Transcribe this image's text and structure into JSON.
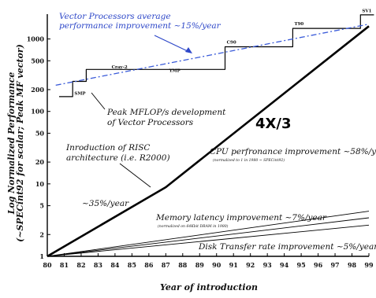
{
  "chart_data": {
    "type": "line",
    "xlabel": "Year of introduction",
    "ylabel_lines": [
      "Log Normalized Performance",
      "(~SPECint92 for scalar; Peak MF vector)"
    ],
    "x_ticks": [
      "80",
      "81",
      "82",
      "83",
      "84",
      "85",
      "86",
      "87",
      "88",
      "89",
      "90",
      "91",
      "92",
      "93",
      "94",
      "95",
      "96",
      "97",
      "98",
      "99"
    ],
    "y_ticks": [
      {
        "value": 1,
        "label": "1"
      },
      {
        "value": 2,
        "label": "2"
      },
      {
        "value": 5,
        "label": "5"
      },
      {
        "value": 10,
        "label": "10"
      },
      {
        "value": 20,
        "label": "20"
      },
      {
        "value": 50,
        "label": "50"
      },
      {
        "value": 100,
        "label": "100"
      },
      {
        "value": 200,
        "label": "200"
      },
      {
        "value": 500,
        "label": "500"
      },
      {
        "value": 1000,
        "label": "1000"
      }
    ],
    "xlim": [
      80,
      99
    ],
    "ylim": [
      1,
      2200
    ],
    "yscale": "log",
    "series": [
      {
        "key": "cpu",
        "color": "#000000",
        "points": [
          [
            80,
            1
          ],
          [
            87,
            9
          ],
          [
            99,
            1500
          ]
        ]
      },
      {
        "key": "vector_peak",
        "color": "#000000",
        "step": true,
        "points": [
          [
            80.7,
            160
          ],
          [
            81.5,
            160
          ],
          [
            81.5,
            260
          ],
          [
            82.3,
            260
          ],
          [
            82.3,
            380
          ],
          [
            90.5,
            380
          ],
          [
            90.5,
            780
          ],
          [
            94.5,
            780
          ],
          [
            94.5,
            1400
          ],
          [
            98.5,
            1400
          ],
          [
            98.5,
            2150
          ],
          [
            99.3,
            2150
          ]
        ]
      },
      {
        "key": "vector_trend",
        "color": "#3a5bd9",
        "dashed": true,
        "points": [
          [
            80.5,
            230
          ],
          [
            99,
            1600
          ]
        ]
      },
      {
        "key": "memory_a",
        "color": "#000000",
        "thin": true,
        "points": [
          [
            80,
            1
          ],
          [
            99,
            4.2
          ]
        ]
      },
      {
        "key": "memory_b",
        "color": "#000000",
        "thin": true,
        "points": [
          [
            80,
            1
          ],
          [
            99,
            3.4
          ]
        ]
      },
      {
        "key": "disk",
        "color": "#000000",
        "thin": true,
        "points": [
          [
            80,
            1
          ],
          [
            99,
            2.7
          ]
        ]
      }
    ],
    "machine_labels": [
      {
        "text": "SMP",
        "x": 81.6,
        "y": 170
      },
      {
        "text": "Cray-2",
        "x": 83.8,
        "y": 390
      },
      {
        "text": "YMP",
        "x": 87.2,
        "y": 350
      },
      {
        "text": "C90",
        "x": 90.6,
        "y": 860
      },
      {
        "text": "T90",
        "x": 94.6,
        "y": 1550
      },
      {
        "text": "SV1",
        "x": 98.6,
        "y": 2350
      }
    ],
    "annotations": [
      {
        "key": "vec_avg_1",
        "text": "Vector Processors average",
        "color": "blue"
      },
      {
        "key": "vec_avg_2",
        "text": "performance improvement ~15%/year",
        "color": "blue"
      },
      {
        "key": "peak_1",
        "text": "Peak MFLOP/s development"
      },
      {
        "key": "peak_2",
        "text": "of Vector Processors"
      },
      {
        "key": "big",
        "text": "4X/3"
      },
      {
        "key": "risc_1",
        "text": "Inroduction of RISC"
      },
      {
        "key": "risc_2",
        "text": "architecture (i.e. R2000)"
      },
      {
        "key": "cpu_1",
        "text": "CPU perfronance improvement ~58%/year"
      },
      {
        "key": "cpu_2",
        "text": "(normalized to 1 in 1980 ~ SPECint92)"
      },
      {
        "key": "pct35",
        "text": "~35%/year"
      },
      {
        "key": "mem_1",
        "text": "Memory latency improvement ~7%/year"
      },
      {
        "key": "mem_2",
        "text": "(normalized on 64Kbit DRAM in 1980)"
      },
      {
        "key": "disk",
        "text": "Disk Transfer rate improvement ~5%/year"
      }
    ]
  }
}
